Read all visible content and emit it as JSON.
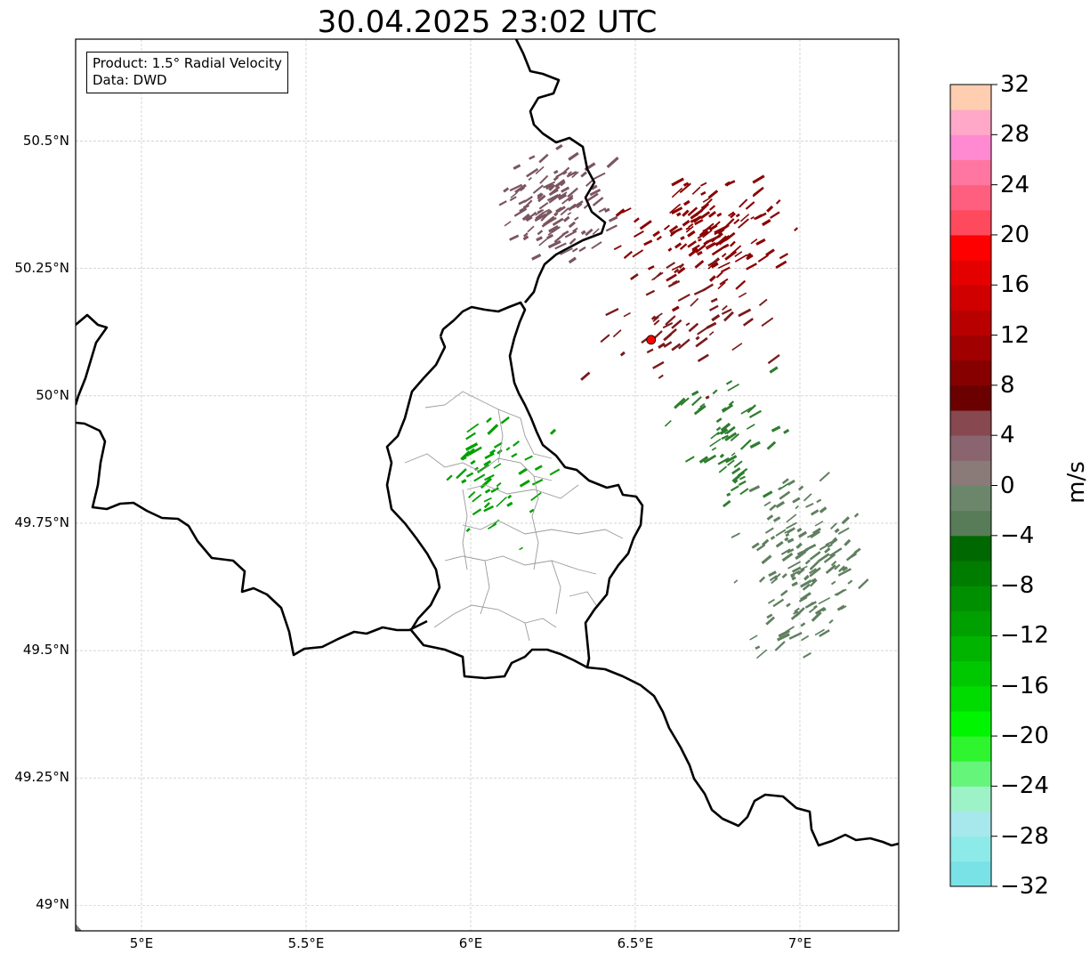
{
  "title": "30.04.2025 23:02 UTC",
  "info": {
    "product": "Product: 1.5° Radial Velocity",
    "data": "Data: DWD"
  },
  "map": {
    "extent": {
      "lon": [
        4.8,
        7.3
      ],
      "lat": [
        48.95,
        50.7
      ]
    },
    "lat_ticks": [
      {
        "value": 50.5,
        "label": "50.5°N"
      },
      {
        "value": 50.25,
        "label": "50.25°N"
      },
      {
        "value": 50.0,
        "label": "50°N"
      },
      {
        "value": 49.75,
        "label": "49.75°N"
      },
      {
        "value": 49.5,
        "label": "49.5°N"
      },
      {
        "value": 49.25,
        "label": "49.25°N"
      },
      {
        "value": 49.0,
        "label": "49°N"
      }
    ],
    "lon_ticks": [
      {
        "value": 5.0,
        "label": "5°E"
      },
      {
        "value": 5.5,
        "label": "5.5°E"
      },
      {
        "value": 6.0,
        "label": "6°E"
      },
      {
        "value": 6.5,
        "label": "6.5°E"
      },
      {
        "value": 7.0,
        "label": "7°E"
      }
    ],
    "grid": true,
    "radar_site": {
      "lon": 6.548,
      "lat": 50.11,
      "color": "#ff0000"
    },
    "velocity_clusters": [
      {
        "lon": 6.25,
        "lat": 50.37,
        "spread_lon": 0.14,
        "spread_lat": 0.1,
        "count": 120,
        "color": "#7a5560"
      },
      {
        "lon": 6.7,
        "lat": 50.32,
        "spread_lon": 0.2,
        "spread_lat": 0.1,
        "count": 140,
        "color": "#8b0000"
      },
      {
        "lon": 6.62,
        "lat": 50.15,
        "spread_lon": 0.22,
        "spread_lat": 0.1,
        "count": 60,
        "color": "#7a1a1a"
      },
      {
        "lon": 6.05,
        "lat": 49.85,
        "spread_lon": 0.14,
        "spread_lat": 0.13,
        "count": 55,
        "color": "#00a000"
      },
      {
        "lon": 6.75,
        "lat": 49.92,
        "spread_lon": 0.14,
        "spread_lat": 0.12,
        "count": 60,
        "color": "#2e7d2e"
      },
      {
        "lon": 7.0,
        "lat": 49.68,
        "spread_lon": 0.16,
        "spread_lat": 0.14,
        "count": 140,
        "color": "#5f7f5f"
      }
    ]
  },
  "colorbar": {
    "unit": "m/s",
    "min": -32,
    "max": 32,
    "step": 2,
    "colors": [
      "#79e2e7",
      "#8ceae9",
      "#a7e8ec",
      "#9ef2c8",
      "#66f57b",
      "#2ef52e",
      "#00f500",
      "#00dc00",
      "#00c800",
      "#00b400",
      "#00a000",
      "#008f00",
      "#007c00",
      "#006800",
      "#577c57",
      "#6c866c",
      "#8a7a78",
      "#8a6570",
      "#874850",
      "#6b0000",
      "#860000",
      "#a00000",
      "#b90000",
      "#d00000",
      "#e50000",
      "#ff0000",
      "#ff4a5e",
      "#ff5f7f",
      "#ff76a0",
      "#ff8ad2",
      "#ffa8c8",
      "#ffcdb0"
    ],
    "tick_labels": [
      "32",
      "28",
      "24",
      "20",
      "16",
      "12",
      "8",
      "4",
      "0",
      "−4",
      "−8",
      "−12",
      "−16",
      "−20",
      "−24",
      "−28",
      "−32"
    ]
  }
}
